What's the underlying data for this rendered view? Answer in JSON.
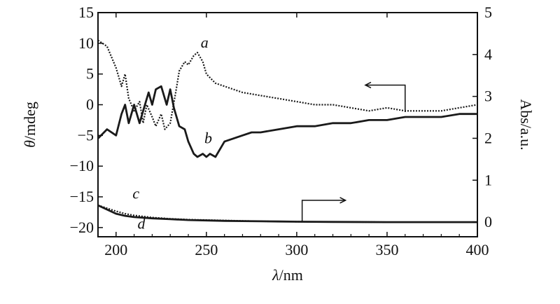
{
  "chart_data": {
    "type": "line",
    "title": "",
    "xlabel_prefix": "λ",
    "xlabel_suffix": "/nm",
    "ylabel_left_prefix": "θ",
    "ylabel_left_suffix": "/mdeg",
    "ylabel_right": "Abs/a.u.",
    "xlim": [
      190,
      400
    ],
    "ylim_left": [
      -21.5,
      15
    ],
    "ylim_right": [
      -0.35,
      5
    ],
    "x_ticks": [
      200,
      250,
      300,
      350,
      400
    ],
    "y_left_ticks": [
      15,
      10,
      5,
      0,
      -5,
      -10,
      -15,
      -20
    ],
    "y_right_ticks": [
      5,
      4,
      3,
      2,
      1,
      0
    ],
    "grid": false,
    "colors": {
      "curve": "#1a1a1a",
      "axis": "#111111"
    },
    "series": [
      {
        "name": "a",
        "axis": "left",
        "style": "dotted",
        "x": [
          190,
          195,
          200,
          203,
          205,
          207,
          210,
          213,
          215,
          217,
          220,
          222,
          225,
          227,
          230,
          233,
          235,
          238,
          240,
          243,
          245,
          248,
          250,
          255,
          260,
          265,
          270,
          280,
          290,
          300,
          310,
          320,
          330,
          340,
          350,
          360,
          370,
          380,
          390,
          400
        ],
        "y": [
          10.5,
          9.5,
          6,
          3,
          5,
          1,
          -1,
          0.5,
          -3,
          0,
          -2,
          -3.5,
          -1.5,
          -4,
          -3,
          2,
          5.5,
          7,
          6.5,
          8,
          8.5,
          7,
          5,
          3.5,
          3,
          2.5,
          2,
          1.5,
          1,
          0.5,
          0,
          0,
          -0.5,
          -1,
          -0.5,
          -1,
          -1,
          -1,
          -0.5,
          0
        ]
      },
      {
        "name": "b",
        "axis": "left",
        "style": "solid",
        "x": [
          190,
          195,
          200,
          203,
          205,
          207,
          210,
          213,
          215,
          218,
          220,
          222,
          225,
          228,
          230,
          232,
          235,
          238,
          240,
          243,
          245,
          248,
          250,
          252,
          255,
          258,
          260,
          265,
          270,
          275,
          280,
          290,
          300,
          310,
          320,
          330,
          340,
          350,
          360,
          370,
          380,
          390,
          400
        ],
        "y": [
          -5.5,
          -4,
          -5,
          -1.5,
          0,
          -3,
          0,
          -3,
          -1,
          2,
          0,
          2.5,
          3,
          0,
          2.5,
          -0.5,
          -3.5,
          -4,
          -6,
          -8,
          -8.5,
          -8,
          -8.5,
          -8,
          -8.5,
          -7,
          -6,
          -5.5,
          -5,
          -4.5,
          -4.5,
          -4,
          -3.5,
          -3.5,
          -3,
          -3,
          -2.5,
          -2.5,
          -2,
          -2,
          -2,
          -1.5,
          -1.5
        ]
      },
      {
        "name": "c",
        "axis": "right",
        "style": "dotted",
        "x": [
          190,
          195,
          200,
          205,
          210,
          220,
          230,
          240,
          250,
          260,
          270,
          280,
          290,
          300,
          320,
          350,
          380,
          400
        ],
        "y": [
          0.4,
          0.33,
          0.26,
          0.2,
          0.16,
          0.11,
          0.08,
          0.06,
          0.05,
          0.04,
          0.03,
          0.02,
          0.015,
          0.01,
          0.005,
          0.0,
          0.0,
          0.0
        ]
      },
      {
        "name": "d",
        "axis": "right",
        "style": "solid",
        "x": [
          190,
          195,
          200,
          205,
          210,
          220,
          230,
          240,
          250,
          260,
          270,
          280,
          290,
          300,
          320,
          350,
          380,
          400
        ],
        "y": [
          0.4,
          0.3,
          0.2,
          0.15,
          0.12,
          0.09,
          0.07,
          0.05,
          0.04,
          0.03,
          0.025,
          0.02,
          0.015,
          0.01,
          0.005,
          0.0,
          0.0,
          0.0
        ]
      }
    ],
    "annotations": [
      {
        "text": "a",
        "series": "a",
        "x": 249,
        "axis": "left",
        "y": 9.3
      },
      {
        "text": "b",
        "series": "b",
        "x": 251,
        "axis": "left",
        "y": -6.3
      },
      {
        "text": "c",
        "series": "c",
        "x": 211,
        "axis": "left",
        "y": -15.3
      },
      {
        "text": "d",
        "series": "d",
        "x": 214,
        "axis": "left",
        "y": -20.2
      }
    ],
    "axis_indicators": [
      {
        "target_axis": "left",
        "direction": "left"
      },
      {
        "target_axis": "right",
        "direction": "right"
      }
    ]
  }
}
